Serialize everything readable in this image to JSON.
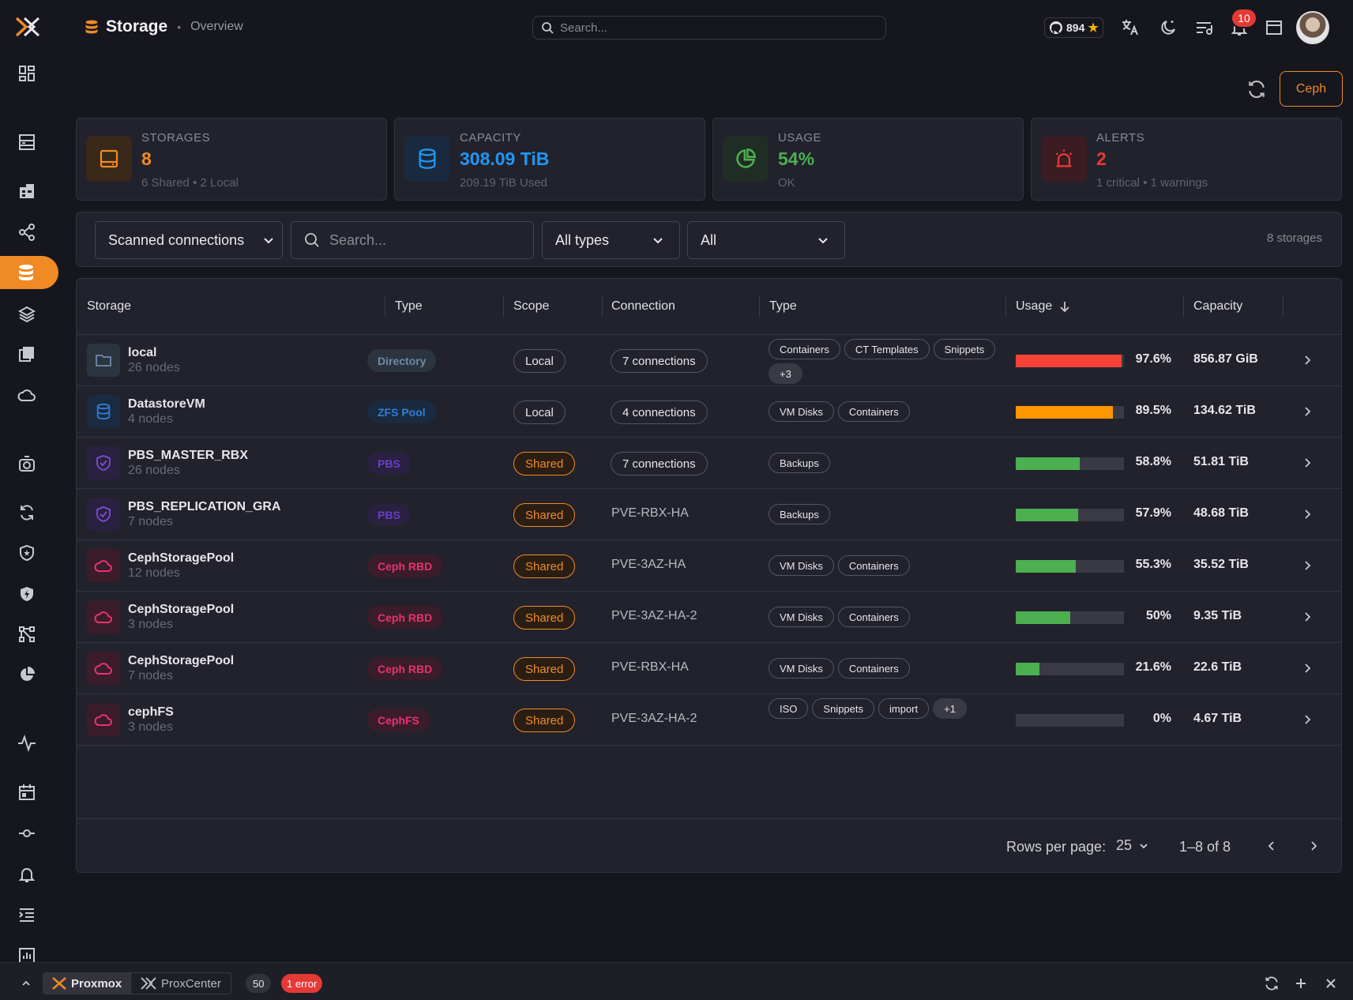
{
  "topbar": {
    "title": "Storage",
    "subtitle": "Overview",
    "search_placeholder": "Search...",
    "github_stars": "894",
    "notifications_count": "10"
  },
  "toolbar": {
    "ceph_label": "Ceph"
  },
  "cards": [
    {
      "label": "STORAGES",
      "value": "8",
      "sub": "6 Shared • 2 Local",
      "color": "#f08a24"
    },
    {
      "label": "CAPACITY",
      "value": "308.09 TiB",
      "sub": "209.19 TiB Used",
      "color": "#2196f3"
    },
    {
      "label": "USAGE",
      "value": "54%",
      "sub": "OK",
      "color": "#4caf50"
    },
    {
      "label": "ALERTS",
      "value": "2",
      "sub": "1 critical • 1 warnings",
      "color": "#e53935"
    }
  ],
  "filters": {
    "connections": "Scanned connections",
    "search_placeholder": "Search...",
    "types": "All types",
    "scope": "All",
    "count": "8 storages"
  },
  "table": {
    "headers": [
      "Storage",
      "Type",
      "Scope",
      "Connection",
      "Type",
      "Usage",
      "Capacity"
    ],
    "rows": [
      {
        "name": "local",
        "nodes": "26 nodes",
        "type": "Directory",
        "scope": "Local",
        "connection": "7 connections",
        "tags": [
          "Containers",
          "CT Templates",
          "Snippets",
          "+3"
        ],
        "usage": "97.6%",
        "usage_value": 97.6,
        "capacity": "856.87 GiB"
      },
      {
        "name": "DatastoreVM",
        "nodes": "4 nodes",
        "type": "ZFS Pool",
        "scope": "Local",
        "connection": "4 connections",
        "tags": [
          "VM Disks",
          "Containers"
        ],
        "usage": "89.5%",
        "usage_value": 89.5,
        "capacity": "134.62 TiB"
      },
      {
        "name": "PBS_MASTER_RBX",
        "nodes": "26 nodes",
        "type": "PBS",
        "scope": "Shared",
        "connection": "7 connections",
        "tags": [
          "Backups"
        ],
        "usage": "58.8%",
        "usage_value": 58.8,
        "capacity": "51.81 TiB"
      },
      {
        "name": "PBS_REPLICATION_GRA",
        "nodes": "7 nodes",
        "type": "PBS",
        "scope": "Shared",
        "connection": "PVE-RBX-HA",
        "tags": [
          "Backups"
        ],
        "usage": "57.9%",
        "usage_value": 57.9,
        "capacity": "48.68 TiB"
      },
      {
        "name": "CephStoragePool",
        "nodes": "12 nodes",
        "type": "Ceph RBD",
        "scope": "Shared",
        "connection": "PVE-3AZ-HA",
        "tags": [
          "VM Disks",
          "Containers"
        ],
        "usage": "55.3%",
        "usage_value": 55.3,
        "capacity": "35.52 TiB"
      },
      {
        "name": "CephStoragePool",
        "nodes": "3 nodes",
        "type": "Ceph RBD",
        "scope": "Shared",
        "connection": "PVE-3AZ-HA-2",
        "tags": [
          "VM Disks",
          "Containers"
        ],
        "usage": "50%",
        "usage_value": 50,
        "capacity": "9.35 TiB"
      },
      {
        "name": "CephStoragePool",
        "nodes": "7 nodes",
        "type": "Ceph RBD",
        "scope": "Shared",
        "connection": "PVE-RBX-HA",
        "tags": [
          "VM Disks",
          "Containers"
        ],
        "usage": "21.6%",
        "usage_value": 21.6,
        "capacity": "22.6 TiB"
      },
      {
        "name": "cephFS",
        "nodes": "3 nodes",
        "type": "CephFS",
        "scope": "Shared",
        "connection": "PVE-3AZ-HA-2",
        "tags": [
          "ISO",
          "Snippets",
          "import",
          "+1"
        ],
        "usage": "0%",
        "usage_value": 0,
        "capacity": "4.67 TiB"
      }
    ],
    "footer": {
      "rows_label": "Rows per page:",
      "rows_value": "25",
      "range": "1–8 of 8"
    }
  },
  "statusbar": {
    "tab1": "Proxmox",
    "tab2": "ProxCenter",
    "count": "50",
    "error": "1 error"
  }
}
